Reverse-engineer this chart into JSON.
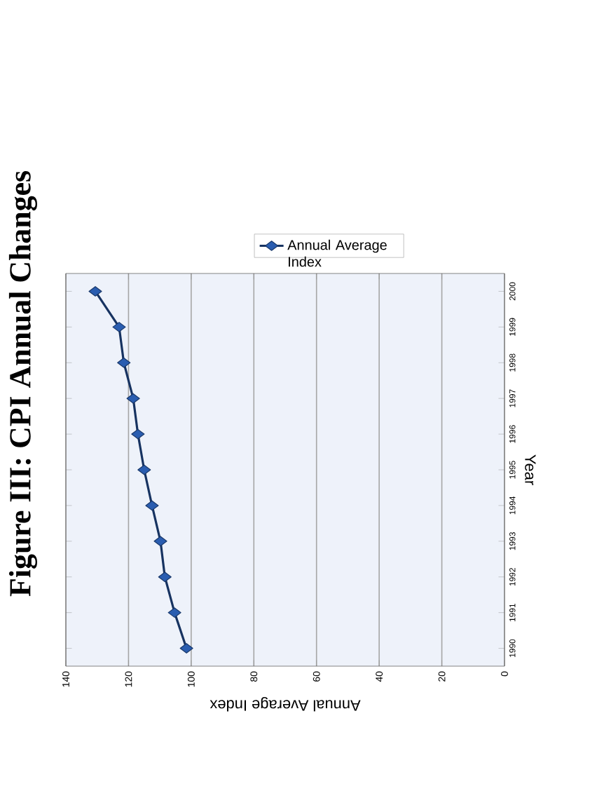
{
  "chart_data": {
    "type": "line",
    "orientation": "horizontal",
    "title": "Figure III: CPI Annual Changes",
    "xlabel": "Annual Average Index",
    "ylabel": "Year",
    "categories": [
      "2000",
      "1999",
      "1998",
      "1997",
      "1996",
      "1995",
      "1994",
      "1993",
      "1992",
      "1991",
      "1990"
    ],
    "series": [
      {
        "name": "Annual Average Index",
        "color": "#2a5db0",
        "values": [
          130.6,
          123.0,
          121.5,
          118.5,
          117.0,
          115.0,
          112.5,
          109.8,
          108.4,
          105.3,
          101.5
        ]
      }
    ],
    "xlim": [
      140,
      0
    ],
    "xticks": [
      140,
      120,
      100,
      80,
      60,
      40,
      20,
      0
    ],
    "grid": "x",
    "legend": "top",
    "marker": "diamond",
    "line_style": "solid"
  }
}
